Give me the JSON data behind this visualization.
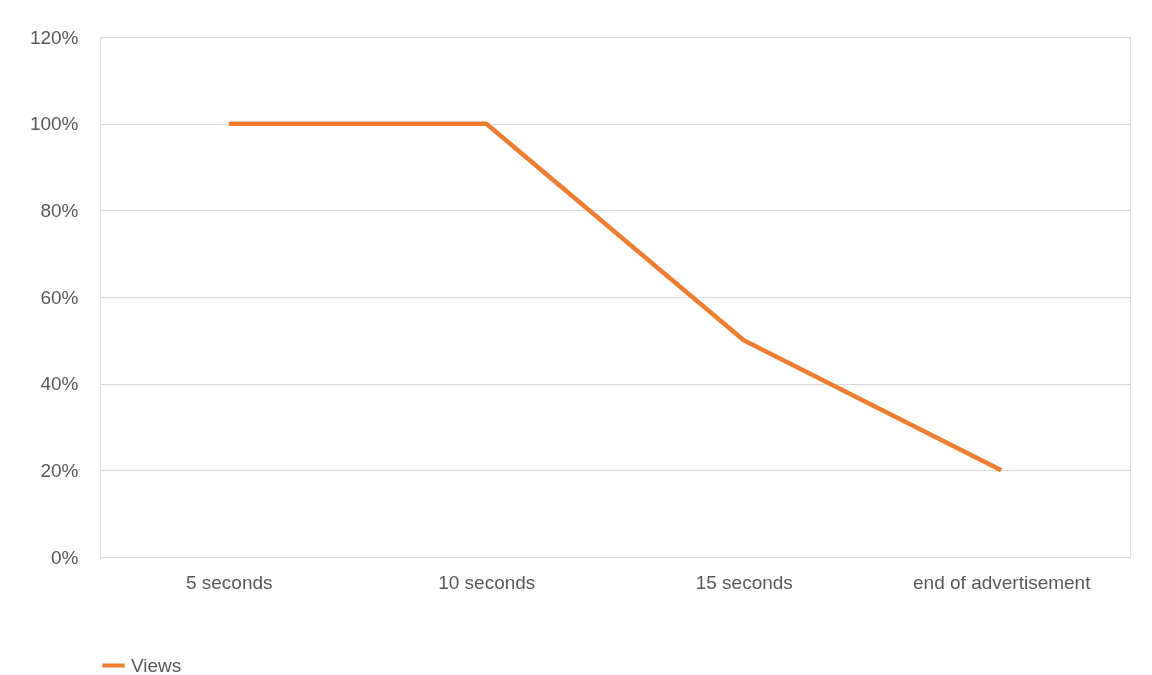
{
  "chart_data": {
    "type": "line",
    "categories": [
      "5 seconds",
      "10 seconds",
      "15 seconds",
      "end of advertisement"
    ],
    "series": [
      {
        "name": "Views",
        "color": "#ed7d31",
        "values": [
          100,
          100,
          50,
          20
        ]
      }
    ],
    "ylim": [
      0,
      120
    ],
    "yticks": [
      {
        "value": 0,
        "label": "0%"
      },
      {
        "value": 20,
        "label": "20%"
      },
      {
        "value": 40,
        "label": "40%"
      },
      {
        "value": 60,
        "label": "60%"
      },
      {
        "value": 80,
        "label": "80%"
      },
      {
        "value": 100,
        "label": "100%"
      },
      {
        "value": 120,
        "label": "120%"
      }
    ],
    "grid": "y",
    "legend": "bottom"
  }
}
